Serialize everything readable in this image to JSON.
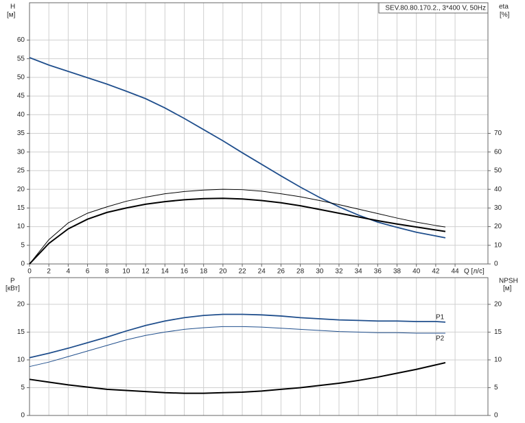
{
  "chart_data": [
    {
      "type": "line",
      "title": "SEV.80.80.170.2., 3*400 V, 50Hz",
      "y_label": "H",
      "y_unit": "[м]",
      "y2_label": "eta",
      "y2_unit": "[%]",
      "x_label": "Q [л/с]",
      "x": [
        0,
        2,
        4,
        6,
        8,
        10,
        12,
        14,
        16,
        18,
        20,
        22,
        24,
        26,
        28,
        30,
        32,
        34,
        36,
        38,
        40,
        42,
        43
      ],
      "xlim": [
        0,
        47.4
      ],
      "xticks": [
        0,
        2,
        4,
        6,
        8,
        10,
        12,
        14,
        16,
        18,
        20,
        22,
        24,
        26,
        28,
        30,
        32,
        34,
        36,
        38,
        40,
        42,
        44
      ],
      "ylim": [
        0,
        70
      ],
      "yticks": [
        0,
        5,
        10,
        15,
        20,
        25,
        30,
        35,
        40,
        45,
        50,
        55,
        60
      ],
      "y2lim": [
        0,
        140
      ],
      "y2ticks": [
        0,
        10,
        20,
        30,
        40,
        50,
        60,
        70
      ],
      "grid": true,
      "series": [
        {
          "color": "#1f4e8c",
          "width": 1.8,
          "values": [
            55.3,
            53.3,
            51.6,
            49.9,
            48.2,
            46.3,
            44.3,
            41.8,
            39,
            36,
            33,
            29.8,
            26.7,
            23.6,
            20.6,
            17.8,
            15.3,
            13.1,
            11.2,
            9.8,
            8.5,
            7.5,
            7.0
          ]
        },
        {
          "color": "#000000",
          "width": 1,
          "axis": "y2",
          "values": [
            0,
            13,
            22,
            27.2,
            30.6,
            33.6,
            35.8,
            37.6,
            38.8,
            39.6,
            40,
            39.8,
            39,
            37.6,
            36,
            34,
            31.8,
            29.4,
            27,
            24.6,
            22.4,
            20.6,
            19.8
          ]
        },
        {
          "color": "#000000",
          "width": 2,
          "axis": "y2",
          "values": [
            0,
            11,
            18.8,
            24,
            27.6,
            30,
            32,
            33.4,
            34.4,
            35,
            35.2,
            34.8,
            34,
            32.8,
            31.2,
            29.2,
            27.2,
            25.2,
            23.2,
            21.4,
            19.8,
            18.2,
            17.4
          ]
        }
      ]
    },
    {
      "type": "line",
      "y_label": "P",
      "y_unit": "[кВт]",
      "y2_label": "NPSH",
      "y2_unit": "[м]",
      "x": [
        0,
        2,
        4,
        6,
        8,
        10,
        12,
        14,
        16,
        18,
        20,
        22,
        24,
        26,
        28,
        30,
        32,
        34,
        36,
        38,
        40,
        42,
        43
      ],
      "xlim": [
        0,
        47.4
      ],
      "ylim": [
        0,
        24.8
      ],
      "yticks": [
        0,
        5,
        10,
        15,
        20
      ],
      "y2lim": [
        0,
        24.8
      ],
      "y2ticks": [
        0,
        5,
        10,
        15,
        20
      ],
      "grid": true,
      "series": [
        {
          "name": "P1",
          "color": "#1f4e8c",
          "width": 1.8,
          "values": [
            10.4,
            11.2,
            12.1,
            13.1,
            14.1,
            15.2,
            16.2,
            17,
            17.6,
            18,
            18.2,
            18.2,
            18.1,
            17.9,
            17.6,
            17.4,
            17.2,
            17.1,
            17,
            17,
            16.9,
            16.9,
            16.8
          ]
        },
        {
          "name": "P2",
          "color": "#1f4e8c",
          "width": 1,
          "values": [
            8.8,
            9.6,
            10.6,
            11.6,
            12.6,
            13.6,
            14.4,
            15,
            15.5,
            15.8,
            16,
            16,
            15.9,
            15.7,
            15.5,
            15.3,
            15.1,
            15,
            14.9,
            14.9,
            14.8,
            14.8,
            14.8
          ]
        },
        {
          "color": "#000000",
          "width": 2,
          "axis": "y2",
          "values": [
            6.5,
            6,
            5.5,
            5.1,
            4.7,
            4.5,
            4.3,
            4.1,
            4,
            4,
            4.1,
            4.2,
            4.4,
            4.7,
            5,
            5.4,
            5.8,
            6.3,
            6.9,
            7.6,
            8.3,
            9.1,
            9.5
          ]
        }
      ]
    }
  ]
}
